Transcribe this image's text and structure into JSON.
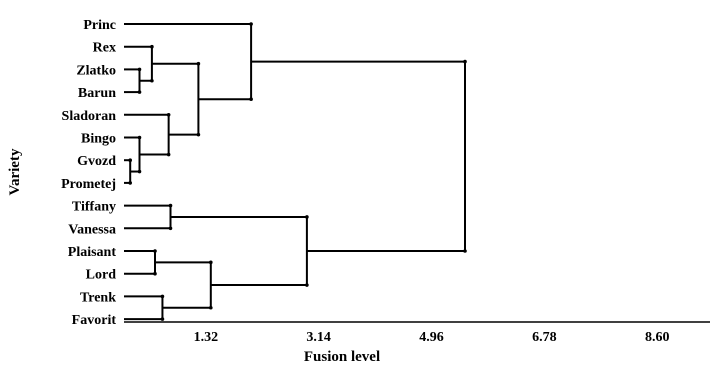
{
  "chart_data": {
    "type": "dendrogram",
    "title": "",
    "xlabel": "Fusion level",
    "ylabel": "Variety",
    "x_ticks": [
      "1.32",
      "3.14",
      "4.96",
      "6.78",
      "8.60"
    ],
    "xlim": [
      0,
      8.6
    ],
    "leaves": [
      "Princ",
      "Rex",
      "Zlatko",
      "Barun",
      "Sladoran",
      "Bingo",
      "Gvozd",
      "Prometej",
      "Tiffany",
      "Vanessa",
      "Plaisant",
      "Lord",
      "Trenk",
      "Favorit"
    ],
    "merges": [
      {
        "id": "m1",
        "children": [
          "Gvozd",
          "Prometej"
        ],
        "height": 0.1
      },
      {
        "id": "m2",
        "children": [
          "Bingo",
          "m1"
        ],
        "height": 0.25
      },
      {
        "id": "m3",
        "children": [
          "Zlatko",
          "Barun"
        ],
        "height": 0.25
      },
      {
        "id": "m4",
        "children": [
          "Rex",
          "m3"
        ],
        "height": 0.45
      },
      {
        "id": "m5",
        "children": [
          "Sladoran",
          "m2"
        ],
        "height": 0.72
      },
      {
        "id": "m6",
        "children": [
          "m4",
          "m5"
        ],
        "height": 1.2
      },
      {
        "id": "m7",
        "children": [
          "Princ",
          "m6"
        ],
        "height": 2.05
      },
      {
        "id": "m8",
        "children": [
          "Plaisant",
          "Lord"
        ],
        "height": 0.5
      },
      {
        "id": "m9",
        "children": [
          "Trenk",
          "Favorit"
        ],
        "height": 0.62
      },
      {
        "id": "m10",
        "children": [
          "m8",
          "m9"
        ],
        "height": 1.4
      },
      {
        "id": "m11",
        "children": [
          "Tiffany",
          "Vanessa"
        ],
        "height": 0.75
      },
      {
        "id": "m12",
        "children": [
          "m11",
          "m10"
        ],
        "height": 2.95
      },
      {
        "id": "m13",
        "children": [
          "m7",
          "m12"
        ],
        "height": 5.5
      }
    ]
  }
}
